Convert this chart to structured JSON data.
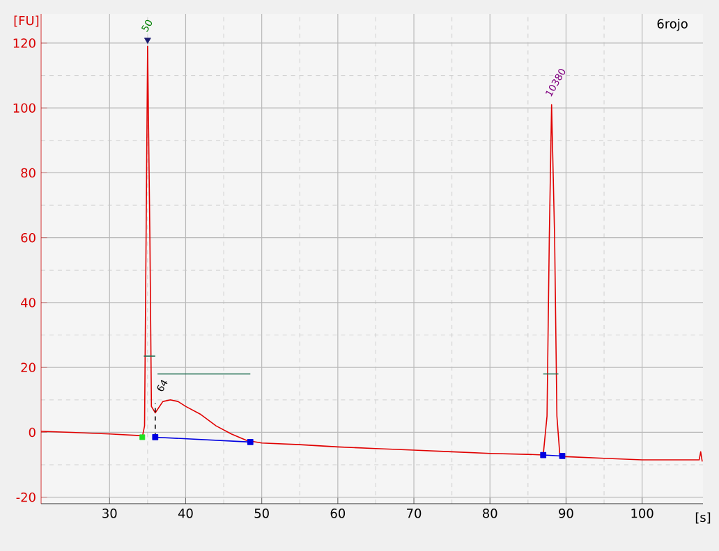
{
  "chart_data": {
    "type": "line",
    "xlabel": "[s]",
    "ylabel": "[FU]",
    "xlim": [
      21,
      108
    ],
    "ylim": [
      -22,
      129
    ],
    "xticks": [
      30,
      40,
      50,
      60,
      70,
      80,
      90,
      100
    ],
    "yticks": [
      -20,
      0,
      20,
      40,
      60,
      80,
      100,
      120
    ],
    "grid": true,
    "series": [
      {
        "color": "#e00000",
        "x": [
          21,
          25,
          30,
          34,
          34.3,
          34.6,
          34.8,
          35,
          35.3,
          35.5,
          36,
          37,
          38,
          39,
          40,
          42,
          44,
          46,
          48,
          50,
          55,
          60,
          65,
          70,
          75,
          80,
          85,
          87,
          87.5,
          87.8,
          88.1,
          88.5,
          88.8,
          89.2,
          90,
          95,
          100,
          105,
          107.5,
          107.7,
          107.9
        ],
        "values": [
          0.3,
          0,
          -0.5,
          -1,
          -1.5,
          2,
          60,
          119,
          60,
          8,
          6,
          9.5,
          10,
          9.5,
          8,
          5.5,
          2,
          -0.5,
          -2.5,
          -3.3,
          -3.8,
          -4.5,
          -5,
          -5.5,
          -6,
          -6.5,
          -6.8,
          -7,
          5,
          60,
          101,
          60,
          5,
          -7.5,
          -7.5,
          -8,
          -8.5,
          -8.5,
          -8.5,
          -6,
          -9
        ]
      },
      {
        "color": "#0000e0",
        "marker": "square",
        "x": [
          36,
          48.5,
          68,
          87,
          89.5
        ],
        "values": [
          -1.5,
          -3,
          null,
          -7,
          -7.3
        ]
      },
      {
        "type": "scatter",
        "color": "#20e020",
        "marker": "square",
        "x": [
          34.3
        ],
        "values": [
          -1.5
        ]
      },
      {
        "type": "scatter",
        "color": "#1a1a6e",
        "marker": "triangle",
        "x": [
          35
        ],
        "values": [
          121
        ]
      },
      {
        "color": "#1e6e50",
        "x": [
          34.5,
          36,
          36.2,
          36.3,
          48.5,
          70,
          87,
          89
        ],
        "values": [
          23.5,
          23.5,
          null,
          18,
          18,
          null,
          18,
          18
        ]
      },
      {
        "color": "#000000",
        "line_style": "dashed",
        "x": [
          36,
          36
        ],
        "values": [
          -1.5,
          9
        ]
      }
    ],
    "annotations": [
      {
        "text": "50",
        "x": 35,
        "y": 121
      },
      {
        "text": "10380",
        "x": 88.1,
        "y": 101
      },
      {
        "text": "64",
        "x": 37,
        "y": 10
      },
      "6rojo"
    ]
  }
}
